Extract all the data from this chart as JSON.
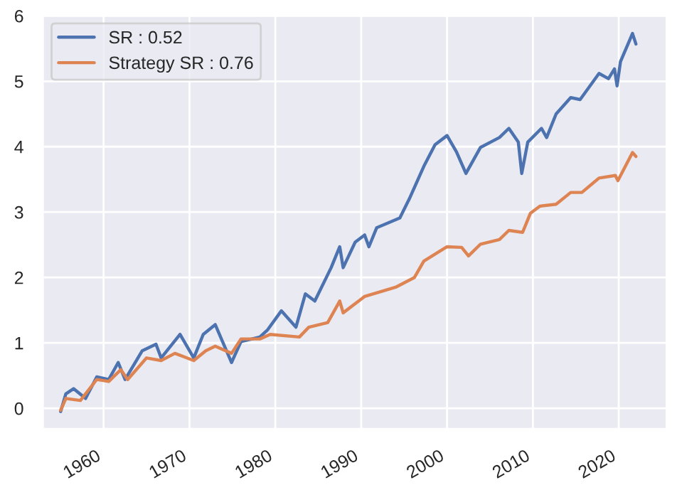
{
  "chart_data": {
    "type": "line",
    "xlim": [
      1952.9,
      2025.6
    ],
    "xticks": [
      1960,
      1970,
      1980,
      1990,
      2000,
      2010,
      2020
    ],
    "ylim": [
      -0.32,
      6.02
    ],
    "yticks": [
      0,
      1,
      2,
      3,
      4,
      5,
      6
    ],
    "grid": true,
    "legend": "top left",
    "marker": "none",
    "line_style": "solid",
    "series": [
      {
        "name": "SR : 0.52",
        "color": "#4c72b0",
        "x": [
          1955.0,
          1955.6,
          1956.5,
          1957.9,
          1959.2,
          1960.6,
          1961.7,
          1962.5,
          1964.5,
          1966.1,
          1966.7,
          1968.9,
          1970.5,
          1971.6,
          1973.0,
          1974.9,
          1976.0,
          1978.2,
          1979.1,
          1980.7,
          1982.4,
          1983.5,
          1984.6,
          1986.5,
          1987.5,
          1987.9,
          1989.3,
          1990.4,
          1990.9,
          1991.8,
          1994.5,
          1995.6,
          1997.3,
          1998.6,
          2000.0,
          2001.1,
          2002.2,
          2003.9,
          2006.1,
          2007.2,
          2008.3,
          2008.7,
          2009.4,
          2011.0,
          2011.6,
          2012.7,
          2014.4,
          2015.5,
          2017.7,
          2018.8,
          2019.5,
          2019.8,
          2020.2,
          2021.6,
          2022.0
        ],
        "values": [
          -0.05,
          0.22,
          0.3,
          0.15,
          0.48,
          0.44,
          0.7,
          0.44,
          0.88,
          0.98,
          0.77,
          1.13,
          0.77,
          1.13,
          1.28,
          0.7,
          1.02,
          1.09,
          1.2,
          1.49,
          1.24,
          1.75,
          1.64,
          2.15,
          2.47,
          2.15,
          2.54,
          2.65,
          2.47,
          2.76,
          2.91,
          3.2,
          3.7,
          4.03,
          4.17,
          3.92,
          3.59,
          3.99,
          4.14,
          4.28,
          4.07,
          3.59,
          4.07,
          4.28,
          4.14,
          4.5,
          4.75,
          4.72,
          5.12,
          5.04,
          5.19,
          4.93,
          5.3,
          5.73,
          5.57
        ]
      },
      {
        "name": "Strategy SR : 0.76",
        "color": "#dd8452",
        "x": [
          1955.0,
          1955.6,
          1957.3,
          1959.2,
          1960.6,
          1962.0,
          1962.8,
          1965.0,
          1966.7,
          1968.3,
          1970.5,
          1971.9,
          1973.0,
          1974.9,
          1976.0,
          1978.2,
          1979.4,
          1982.8,
          1983.9,
          1986.1,
          1987.5,
          1987.9,
          1990.4,
          1994.0,
          1996.2,
          1997.3,
          2000.0,
          2001.7,
          2002.5,
          2003.9,
          2006.1,
          2007.2,
          2008.8,
          2009.7,
          2010.8,
          2012.7,
          2014.4,
          2015.7,
          2017.7,
          2019.6,
          2019.9,
          2021.6,
          2022.0
        ],
        "values": [
          -0.03,
          0.15,
          0.12,
          0.44,
          0.41,
          0.59,
          0.44,
          0.77,
          0.73,
          0.84,
          0.73,
          0.88,
          0.95,
          0.84,
          1.06,
          1.06,
          1.13,
          1.09,
          1.24,
          1.31,
          1.64,
          1.46,
          1.71,
          1.85,
          2.0,
          2.25,
          2.47,
          2.46,
          2.33,
          2.51,
          2.58,
          2.72,
          2.69,
          2.98,
          3.09,
          3.12,
          3.3,
          3.3,
          3.52,
          3.56,
          3.48,
          3.91,
          3.85
        ]
      }
    ]
  }
}
